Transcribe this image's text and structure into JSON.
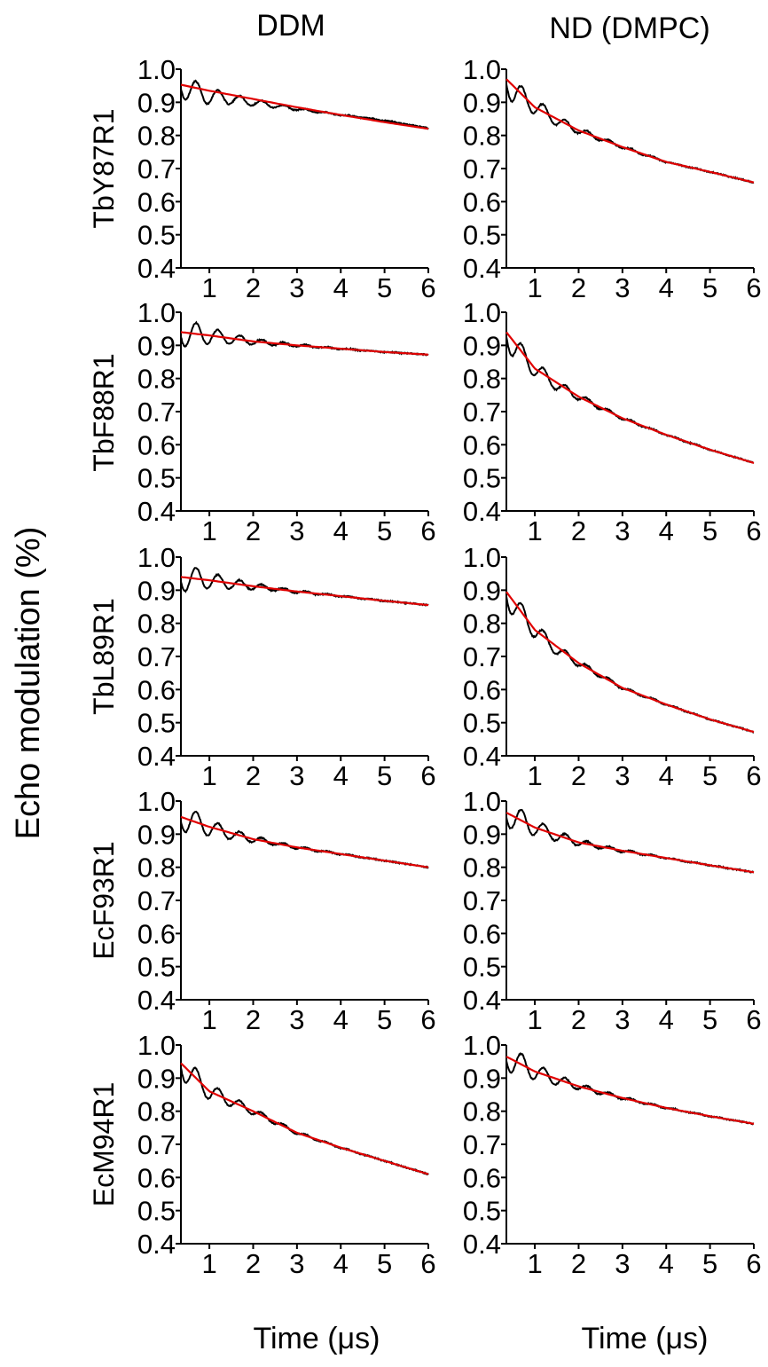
{
  "figure": {
    "column_titles": [
      "DDM",
      "ND (DMPC)"
    ],
    "row_labels": [
      "TbY87R1",
      "TbF88R1",
      "TbL89R1",
      "EcF93R1",
      "EcM94R1"
    ],
    "y_axis_label": "Echo modulation (%)",
    "x_axis_label": "Time (μs)",
    "colors": {
      "data": "#000000",
      "fit": "#e00000",
      "axis": "#000000"
    }
  },
  "chart_data": [
    {
      "type": "line",
      "row": "TbY87R1",
      "column": "DDM",
      "xlim": [
        0.35,
        6
      ],
      "ylim": [
        0.4,
        1.0
      ],
      "xticks": [
        1,
        2,
        3,
        4,
        5,
        6
      ],
      "yticks": [
        0.4,
        0.5,
        0.6,
        0.7,
        0.8,
        0.9,
        1.0
      ],
      "xlabel": "",
      "ylabel": "",
      "series": [
        {
          "x": [
            0.35,
            0.5,
            0.7,
            1,
            1.5,
            2,
            3,
            4,
            5,
            6
          ],
          "y": [
            0.956,
            0.945,
            0.93,
            0.92,
            0.91,
            0.9,
            0.88,
            0.862,
            0.845,
            0.822
          ]
        }
      ],
      "fit": {
        "x": [
          0.35,
          1,
          2,
          3,
          4,
          5,
          6
        ],
        "y": [
          0.953,
          0.935,
          0.91,
          0.885,
          0.862,
          0.84,
          0.82
        ]
      }
    },
    {
      "type": "line",
      "row": "TbY87R1",
      "column": "ND (DMPC)",
      "xlim": [
        0.35,
        6
      ],
      "ylim": [
        0.4,
        1.0
      ],
      "xticks": [
        1,
        2,
        3,
        4,
        5,
        6
      ],
      "yticks": [
        0.4,
        0.5,
        0.6,
        0.7,
        0.8,
        0.9,
        1.0
      ],
      "xlabel": "",
      "ylabel": "",
      "series": [
        {
          "x": [
            0.35,
            0.5,
            0.7,
            1,
            1.5,
            2,
            3,
            4,
            5,
            6
          ],
          "y": [
            0.97,
            0.935,
            0.915,
            0.89,
            0.845,
            0.815,
            0.765,
            0.72,
            0.69,
            0.658
          ]
        }
      ],
      "fit": {
        "x": [
          0.35,
          1,
          2,
          3,
          4,
          5,
          6
        ],
        "y": [
          0.97,
          0.885,
          0.815,
          0.765,
          0.72,
          0.69,
          0.658
        ]
      }
    },
    {
      "type": "line",
      "row": "TbF88R1",
      "column": "DDM",
      "xlim": [
        0.35,
        6
      ],
      "ylim": [
        0.4,
        1.0
      ],
      "xticks": [
        1,
        2,
        3,
        4,
        5,
        6
      ],
      "yticks": [
        0.4,
        0.5,
        0.6,
        0.7,
        0.8,
        0.9,
        1.0
      ],
      "xlabel": "",
      "ylabel": "",
      "series": [
        {
          "x": [
            0.35,
            0.5,
            0.7,
            1,
            1.5,
            2,
            3,
            4,
            5,
            6
          ],
          "y": [
            0.94,
            0.938,
            0.935,
            0.93,
            0.92,
            0.912,
            0.9,
            0.89,
            0.88,
            0.872
          ]
        }
      ],
      "fit": {
        "x": [
          0.35,
          1,
          2,
          3,
          4,
          5,
          6
        ],
        "y": [
          0.94,
          0.93,
          0.912,
          0.9,
          0.89,
          0.88,
          0.872
        ]
      }
    },
    {
      "type": "line",
      "row": "TbF88R1",
      "column": "ND (DMPC)",
      "xlim": [
        0.35,
        6
      ],
      "ylim": [
        0.4,
        1.0
      ],
      "xticks": [
        1,
        2,
        3,
        4,
        5,
        6
      ],
      "yticks": [
        0.4,
        0.5,
        0.6,
        0.7,
        0.8,
        0.9,
        1.0
      ],
      "xlabel": "",
      "ylabel": "",
      "series": [
        {
          "x": [
            0.35,
            0.5,
            0.7,
            1,
            1.5,
            2,
            3,
            4,
            5,
            6
          ],
          "y": [
            0.94,
            0.9,
            0.87,
            0.83,
            0.78,
            0.745,
            0.68,
            0.63,
            0.585,
            0.545
          ]
        }
      ],
      "fit": {
        "x": [
          0.35,
          1,
          2,
          3,
          4,
          5,
          6
        ],
        "y": [
          0.94,
          0.83,
          0.745,
          0.68,
          0.63,
          0.585,
          0.545
        ]
      }
    },
    {
      "type": "line",
      "row": "TbL89R1",
      "column": "DDM",
      "xlim": [
        0.35,
        6
      ],
      "ylim": [
        0.4,
        1.0
      ],
      "xticks": [
        1,
        2,
        3,
        4,
        5,
        6
      ],
      "yticks": [
        0.4,
        0.5,
        0.6,
        0.7,
        0.8,
        0.9,
        1.0
      ],
      "xlabel": "",
      "ylabel": "",
      "series": [
        {
          "x": [
            0.35,
            0.5,
            0.7,
            1,
            1.5,
            2,
            3,
            4,
            5,
            6
          ],
          "y": [
            0.94,
            0.938,
            0.935,
            0.93,
            0.92,
            0.912,
            0.896,
            0.882,
            0.868,
            0.855
          ]
        }
      ],
      "fit": {
        "x": [
          0.35,
          1,
          2,
          3,
          4,
          5,
          6
        ],
        "y": [
          0.94,
          0.93,
          0.912,
          0.896,
          0.882,
          0.868,
          0.855
        ]
      }
    },
    {
      "type": "line",
      "row": "TbL89R1",
      "column": "ND (DMPC)",
      "xlim": [
        0.35,
        6
      ],
      "ylim": [
        0.4,
        1.0
      ],
      "xticks": [
        1,
        2,
        3,
        4,
        5,
        6
      ],
      "yticks": [
        0.4,
        0.5,
        0.6,
        0.7,
        0.8,
        0.9,
        1.0
      ],
      "xlabel": "",
      "ylabel": "",
      "series": [
        {
          "x": [
            0.35,
            0.5,
            0.7,
            1,
            1.5,
            2,
            3,
            4,
            5,
            6
          ],
          "y": [
            0.895,
            0.86,
            0.825,
            0.78,
            0.72,
            0.68,
            0.605,
            0.555,
            0.51,
            0.472
          ]
        }
      ],
      "fit": {
        "x": [
          0.35,
          1,
          2,
          3,
          4,
          5,
          6
        ],
        "y": [
          0.895,
          0.78,
          0.68,
          0.605,
          0.555,
          0.51,
          0.472
        ]
      }
    },
    {
      "type": "line",
      "row": "EcF93R1",
      "column": "DDM",
      "xlim": [
        0.35,
        6
      ],
      "ylim": [
        0.4,
        1.0
      ],
      "xticks": [
        1,
        2,
        3,
        4,
        5,
        6
      ],
      "yticks": [
        0.4,
        0.5,
        0.6,
        0.7,
        0.8,
        0.9,
        1.0
      ],
      "xlabel": "",
      "ylabel": "",
      "series": [
        {
          "x": [
            0.35,
            0.5,
            0.7,
            1,
            1.5,
            2,
            3,
            4,
            5,
            6
          ],
          "y": [
            0.952,
            0.945,
            0.935,
            0.92,
            0.9,
            0.885,
            0.86,
            0.84,
            0.82,
            0.8
          ]
        }
      ],
      "fit": {
        "x": [
          0.35,
          1,
          2,
          3,
          4,
          5,
          6
        ],
        "y": [
          0.952,
          0.922,
          0.885,
          0.86,
          0.84,
          0.82,
          0.8
        ]
      }
    },
    {
      "type": "line",
      "row": "EcF93R1",
      "column": "ND (DMPC)",
      "xlim": [
        0.35,
        6
      ],
      "ylim": [
        0.4,
        1.0
      ],
      "xticks": [
        1,
        2,
        3,
        4,
        5,
        6
      ],
      "yticks": [
        0.4,
        0.5,
        0.6,
        0.7,
        0.8,
        0.9,
        1.0
      ],
      "xlabel": "",
      "ylabel": "",
      "series": [
        {
          "x": [
            0.35,
            0.5,
            0.7,
            1,
            1.5,
            2,
            3,
            4,
            5,
            6
          ],
          "y": [
            0.965,
            0.955,
            0.94,
            0.92,
            0.895,
            0.875,
            0.85,
            0.828,
            0.806,
            0.785
          ]
        }
      ],
      "fit": {
        "x": [
          0.35,
          1,
          2,
          3,
          4,
          5,
          6
        ],
        "y": [
          0.965,
          0.92,
          0.875,
          0.85,
          0.828,
          0.806,
          0.785
        ]
      }
    },
    {
      "type": "line",
      "row": "EcM94R1",
      "column": "DDM",
      "xlim": [
        0.35,
        6
      ],
      "ylim": [
        0.4,
        1.0
      ],
      "xticks": [
        1,
        2,
        3,
        4,
        5,
        6
      ],
      "yticks": [
        0.4,
        0.5,
        0.6,
        0.7,
        0.8,
        0.9,
        1.0
      ],
      "xlabel": "",
      "ylabel": "",
      "series": [
        {
          "x": [
            0.35,
            0.5,
            0.7,
            1,
            1.5,
            2,
            3,
            4,
            5,
            6
          ],
          "y": [
            0.945,
            0.92,
            0.895,
            0.86,
            0.83,
            0.8,
            0.735,
            0.69,
            0.65,
            0.61
          ]
        }
      ],
      "fit": {
        "x": [
          0.35,
          1,
          2,
          3,
          4,
          5,
          6
        ],
        "y": [
          0.945,
          0.86,
          0.8,
          0.735,
          0.69,
          0.65,
          0.61
        ]
      }
    },
    {
      "type": "line",
      "row": "EcM94R1",
      "column": "ND (DMPC)",
      "xlim": [
        0.35,
        6
      ],
      "ylim": [
        0.4,
        1.0
      ],
      "xticks": [
        1,
        2,
        3,
        4,
        5,
        6
      ],
      "yticks": [
        0.4,
        0.5,
        0.6,
        0.7,
        0.8,
        0.9,
        1.0
      ],
      "xlabel": "",
      "ylabel": "",
      "series": [
        {
          "x": [
            0.35,
            0.5,
            0.7,
            1,
            1.5,
            2,
            3,
            4,
            5,
            6
          ],
          "y": [
            0.965,
            0.955,
            0.94,
            0.92,
            0.895,
            0.875,
            0.84,
            0.81,
            0.785,
            0.762
          ]
        }
      ],
      "fit": {
        "x": [
          0.35,
          1,
          2,
          3,
          4,
          5,
          6
        ],
        "y": [
          0.965,
          0.92,
          0.875,
          0.84,
          0.81,
          0.785,
          0.762
        ]
      }
    }
  ]
}
